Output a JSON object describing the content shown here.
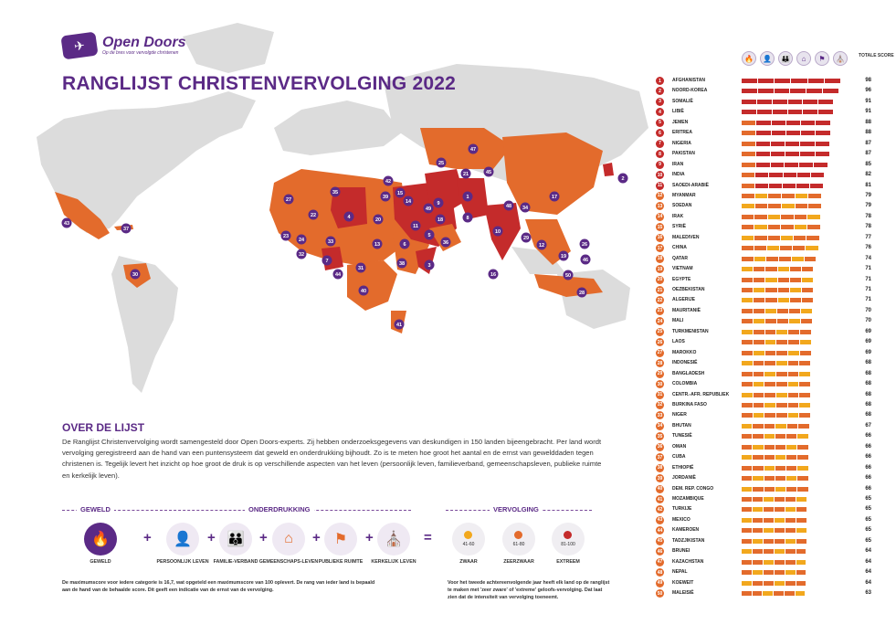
{
  "logo": {
    "name": "Open Doors",
    "tagline": "Op de bres voor vervolgde christenen"
  },
  "title": "RANGLIJST CHRISTENVERVOLGING 2022",
  "about": {
    "title": "OVER DE LIJST",
    "text": "De Ranglijst Christenvervolging wordt samengesteld door Open Doors-experts. Zij hebben onderzoeksgegevens van deskundigen in 150 landen bijeengebracht. Per land wordt vervolging geregistreerd aan de hand van een puntensysteem dat geweld en onderdrukking bijhoudt. Zo is te meten hoe groot het aantal en de ernst van gewelddaden tegen christenen is. Tegelijk levert het inzicht op hoe groot de druk is op verschillende aspecten van het leven (persoonlijk leven, familieverband, gemeenschapsleven, publieke ruimte en kerkelijk leven)."
  },
  "legend": {
    "geweld_title": "GEWELD",
    "onderdrukking_title": "ONDERDRUKKING",
    "vervolging_title": "VERVOLGING",
    "geweld": "GEWELD",
    "categories": [
      "PERSOONLIJK LEVEN",
      "FAMILIE-VERBAND",
      "GEMEENSCHAPS-LEVEN",
      "PUBLIEKE RUIMTE",
      "KERKELIJK LEVEN"
    ],
    "severity": [
      {
        "range": "41-60",
        "label": "ZWAAR",
        "color": "#f2a81d"
      },
      {
        "range": "61-80",
        "label": "ZEERZWAAR",
        "color": "#e36b2c"
      },
      {
        "range": "81-100",
        "label": "EXTREEM",
        "color": "#c42b2b"
      }
    ],
    "note_left": "De maximumscore voor iedere categorie is 16,7, wat opgeteld een maximumscore van 100 oplevert. De rang van ieder land is bepaald aan de hand van de behaalde score. Dit geeft een indicatie van de ernst van de vervolging.",
    "note_right": "Voor het tweede achtereenvolgende jaar heeft elk land op de ranglijst te maken met 'zeer zware' of 'extreme' geloofs-vervolging. Dat laat zien dat de intensiteit van vervolging toeneemt."
  },
  "table_header": {
    "total": "TOTALE SCORE"
  },
  "colors": {
    "purple": "#5b2a86",
    "extreme": "#c42b2b",
    "very_high": "#e36b2c",
    "high": "#f2a81d",
    "land": "#dcdcdc"
  },
  "chart_data": {
    "type": "bar",
    "title": "RANGLIJST CHRISTENVERVOLGING 2022",
    "series_columns": [
      "geweld",
      "persoonlijk leven",
      "familieverband",
      "gemeenschapsleven",
      "publieke ruimte",
      "kerkelijk leven"
    ],
    "rows": [
      {
        "rank": 1,
        "country": "AFGHANISTAN",
        "score": 98
      },
      {
        "rank": 2,
        "country": "NOORD-KOREA",
        "score": 96
      },
      {
        "rank": 3,
        "country": "SOMALIË",
        "score": 91
      },
      {
        "rank": 4,
        "country": "LIBIË",
        "score": 91
      },
      {
        "rank": 5,
        "country": "JEMEN",
        "score": 88
      },
      {
        "rank": 6,
        "country": "ERITREA",
        "score": 88
      },
      {
        "rank": 7,
        "country": "NIGERIA",
        "score": 87
      },
      {
        "rank": 8,
        "country": "PAKISTAN",
        "score": 87
      },
      {
        "rank": 9,
        "country": "IRAN",
        "score": 85
      },
      {
        "rank": 10,
        "country": "INDIA",
        "score": 82
      },
      {
        "rank": 11,
        "country": "SAOEDI-ARABIË",
        "score": 81
      },
      {
        "rank": 12,
        "country": "MYANMAR",
        "score": 79
      },
      {
        "rank": 13,
        "country": "SOEDAN",
        "score": 79
      },
      {
        "rank": 14,
        "country": "IRAK",
        "score": 78
      },
      {
        "rank": 15,
        "country": "SYRIË",
        "score": 78
      },
      {
        "rank": 16,
        "country": "MALEDIVEN",
        "score": 77
      },
      {
        "rank": 17,
        "country": "CHINA",
        "score": 76
      },
      {
        "rank": 18,
        "country": "QATAR",
        "score": 74
      },
      {
        "rank": 19,
        "country": "VIETNAM",
        "score": 71
      },
      {
        "rank": 20,
        "country": "EGYPTE",
        "score": 71
      },
      {
        "rank": 21,
        "country": "OEZBEKISTAN",
        "score": 71
      },
      {
        "rank": 22,
        "country": "ALGERIJE",
        "score": 71
      },
      {
        "rank": 23,
        "country": "MAURITANIË",
        "score": 70
      },
      {
        "rank": 24,
        "country": "MALI",
        "score": 70
      },
      {
        "rank": 25,
        "country": "TURKMENISTAN",
        "score": 69
      },
      {
        "rank": 26,
        "country": "LAOS",
        "score": 69
      },
      {
        "rank": 27,
        "country": "MAROKKO",
        "score": 69
      },
      {
        "rank": 28,
        "country": "INDONESIË",
        "score": 68
      },
      {
        "rank": 29,
        "country": "BANGLADESH",
        "score": 68
      },
      {
        "rank": 30,
        "country": "COLOMBIA",
        "score": 68
      },
      {
        "rank": 31,
        "country": "CENTR.-AFR. REPUBLIEK",
        "score": 68
      },
      {
        "rank": 32,
        "country": "BURKINA FASO",
        "score": 68
      },
      {
        "rank": 33,
        "country": "NIGER",
        "score": 68
      },
      {
        "rank": 34,
        "country": "BHUTAN",
        "score": 67
      },
      {
        "rank": 35,
        "country": "TUNESIË",
        "score": 66
      },
      {
        "rank": 36,
        "country": "OMAN",
        "score": 66
      },
      {
        "rank": 37,
        "country": "CUBA",
        "score": 66
      },
      {
        "rank": 38,
        "country": "ETHIOPIË",
        "score": 66
      },
      {
        "rank": 39,
        "country": "JORDANIË",
        "score": 66
      },
      {
        "rank": 40,
        "country": "DEM. REP. CONGO",
        "score": 66
      },
      {
        "rank": 41,
        "country": "MOZAMBIQUE",
        "score": 65
      },
      {
        "rank": 42,
        "country": "TURKIJE",
        "score": 65
      },
      {
        "rank": 43,
        "country": "MEXICO",
        "score": 65
      },
      {
        "rank": 44,
        "country": "KAMEROEN",
        "score": 65
      },
      {
        "rank": 45,
        "country": "TADZJIKISTAN",
        "score": 65
      },
      {
        "rank": 46,
        "country": "BRUNEI",
        "score": 64
      },
      {
        "rank": 47,
        "country": "KAZACHSTAN",
        "score": 64
      },
      {
        "rank": 48,
        "country": "NEPAL",
        "score": 64
      },
      {
        "rank": 49,
        "country": "KOEWEIT",
        "score": 64
      },
      {
        "rank": 50,
        "country": "MALEISIË",
        "score": 63
      }
    ]
  }
}
